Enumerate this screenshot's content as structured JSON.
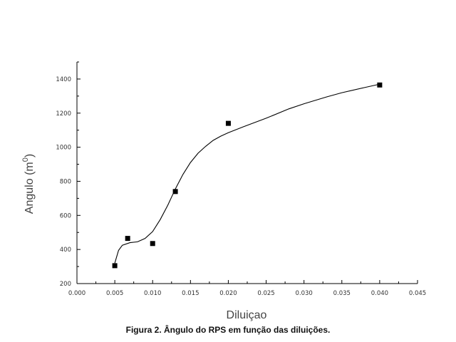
{
  "chart_data": {
    "type": "scatter",
    "title": "",
    "xlabel": "Diluiçao",
    "ylabel": "Angulo (m",
    "ylabel_sup": "0",
    "ylabel_close": ")",
    "xlim": [
      0.0,
      0.045
    ],
    "ylim": [
      200,
      1500
    ],
    "x_ticks": [
      0.0,
      0.005,
      0.01,
      0.015,
      0.02,
      0.025,
      0.03,
      0.035,
      0.04,
      0.045
    ],
    "x_tick_labels": [
      "0.000",
      "0.005",
      "0.010",
      "0.015",
      "0.020",
      "0.025",
      "0.030",
      "0.035",
      "0.040",
      "0.045"
    ],
    "y_ticks": [
      200,
      400,
      600,
      800,
      1000,
      1200,
      1400
    ],
    "y_tick_labels": [
      "200",
      "400",
      "600",
      "800",
      "1000",
      "1200",
      "1400"
    ],
    "grid": false,
    "series": [
      {
        "marker": "square",
        "x": [
          0.005,
          0.0067,
          0.01,
          0.013,
          0.02,
          0.04
        ],
        "y": [
          305,
          465,
          435,
          740,
          1140,
          1365
        ],
        "color": "#000000"
      }
    ],
    "fit_curve": {
      "x": [
        0.005,
        0.0055,
        0.006,
        0.007,
        0.008,
        0.009,
        0.01,
        0.011,
        0.012,
        0.013,
        0.014,
        0.015,
        0.016,
        0.017,
        0.018,
        0.019,
        0.02,
        0.022,
        0.025,
        0.028,
        0.03,
        0.033,
        0.035,
        0.038,
        0.04
      ],
      "y": [
        320,
        395,
        425,
        440,
        445,
        465,
        505,
        575,
        660,
        755,
        840,
        910,
        965,
        1005,
        1040,
        1065,
        1085,
        1120,
        1170,
        1225,
        1255,
        1295,
        1320,
        1350,
        1370
      ],
      "color": "#000000"
    }
  },
  "caption": "Figura 2. Ângulo do RPS em função das diluições."
}
